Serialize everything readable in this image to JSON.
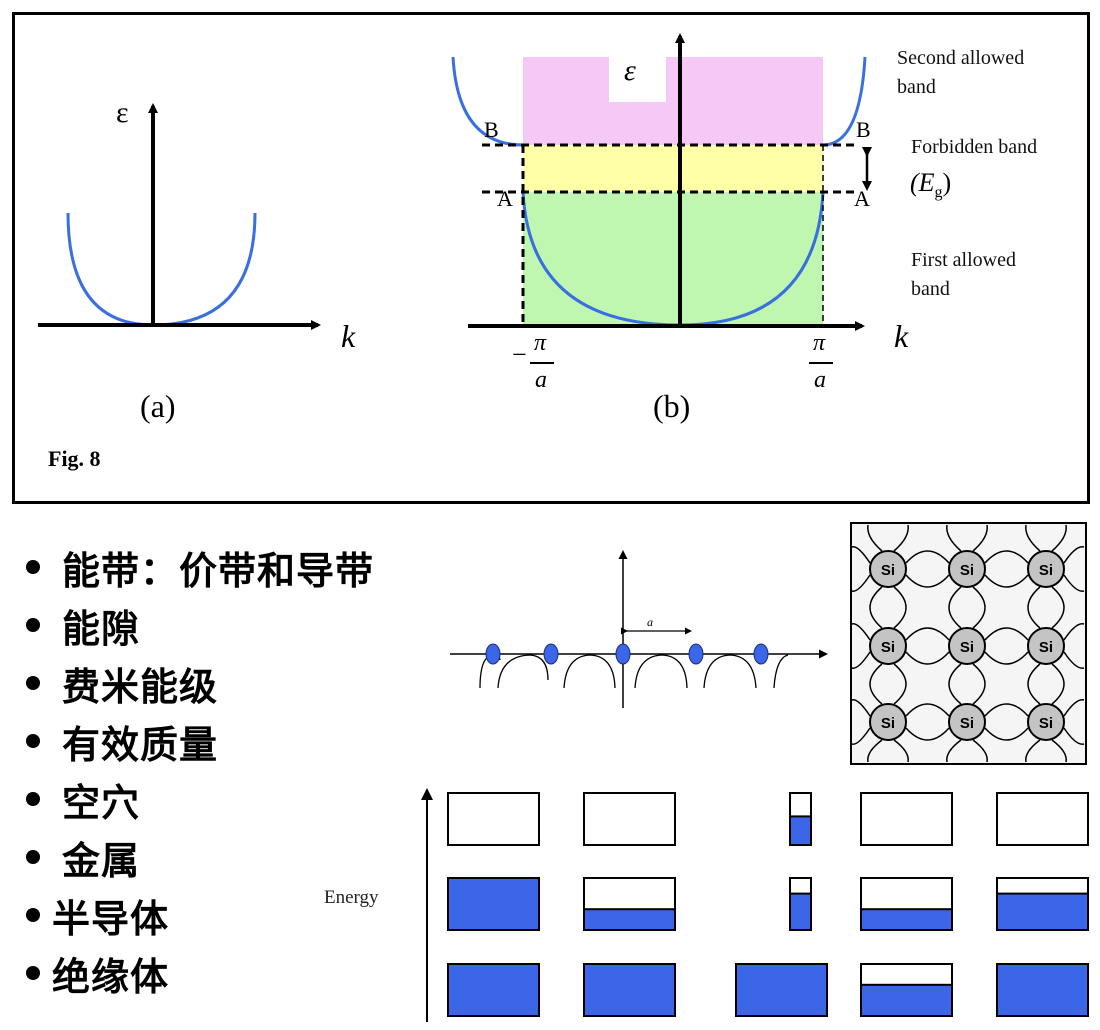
{
  "figure": {
    "caption": "Fig. 8",
    "panel_a": {
      "label": "(a)",
      "y_axis": "ε",
      "x_axis": "k"
    },
    "panel_b": {
      "label": "(b)",
      "y_axis": "ε",
      "x_axis": "k",
      "point_B_left": "B",
      "point_B_right": "B",
      "point_A_left": "A",
      "point_A_right": "A",
      "left_tick_sign": "−",
      "left_tick_num": "π",
      "left_tick_den": "a",
      "right_tick_num": "π",
      "right_tick_den": "a",
      "second_band_line1": "Second allowed",
      "second_band_line2": "band",
      "forbidden_line1": "Forbidden band",
      "forbidden_gap": "(E",
      "forbidden_gap_sub": "g",
      "forbidden_gap_close": ")",
      "first_band_line1": "First allowed",
      "first_band_line2": "band"
    }
  },
  "bullets": [
    "能带：价带和导带",
    "能隙",
    "费米能级",
    "有效质量",
    "空穴",
    "金属",
    "半导体",
    "绝缘体"
  ],
  "lattice_1d": {
    "spacing_label": "a"
  },
  "lattice_2d": {
    "atom_label": "Si"
  },
  "energy_diagram": {
    "axis_label": "Energy",
    "columns": [
      {
        "top_fill": 0,
        "mid_fill": 1,
        "bottom_fill": 1
      },
      {
        "top_fill": 0,
        "mid_fill": 0.4,
        "bottom_fill": 1
      },
      {
        "top_fill": 0.55,
        "mid_fill": 0.7,
        "bottom_fill": 1
      },
      {
        "top_fill": 0,
        "mid_fill": 0.4,
        "bottom_fill": 0.6
      },
      {
        "top_fill": 0,
        "mid_fill": 0.7,
        "bottom_fill": 1
      }
    ]
  },
  "colors": {
    "curve": "#3a6fe0",
    "second_band": "#f5c8f5",
    "forbidden_band": "#ffffa8",
    "first_band": "#bff7b0",
    "electron_fill": "#3b66e8",
    "atom_fill": "#c4c4c4",
    "lattice_bg": "#f5f5f5"
  }
}
